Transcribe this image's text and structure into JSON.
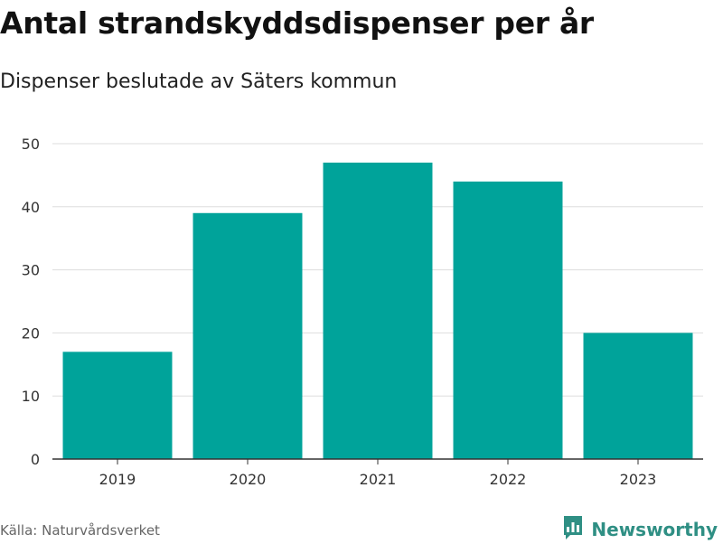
{
  "chart_data": {
    "type": "bar",
    "title": "Antal strandskyddsdispenser per år",
    "subtitle": "Dispenser beslutade av Säters kommun",
    "categories": [
      "2019",
      "2020",
      "2021",
      "2022",
      "2023"
    ],
    "values": [
      17,
      39,
      47,
      44,
      20
    ],
    "ylim": [
      0,
      50
    ],
    "yticks": [
      0,
      10,
      20,
      30,
      40,
      50
    ],
    "grid": true,
    "bar_color": "#00a39a"
  },
  "footer": {
    "source": "Källa: Naturvårdsverket",
    "brand": "Newsworthy"
  },
  "colors": {
    "grid": "#dddddd",
    "axis": "#333333",
    "brand": "#2f8f84"
  },
  "icons": {
    "brand_logo": "bar-chart-speech-bubble-icon"
  }
}
